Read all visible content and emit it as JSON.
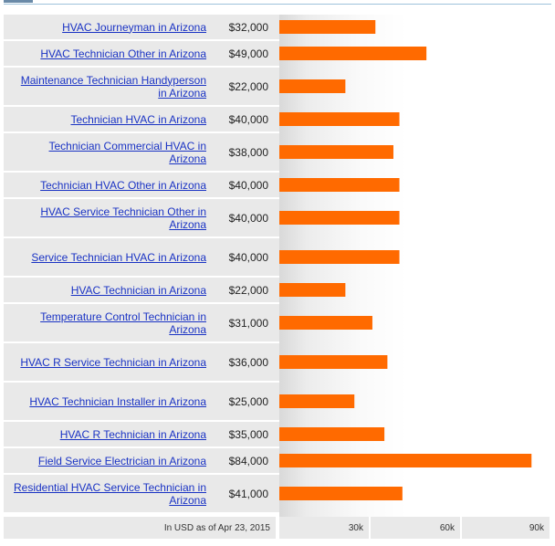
{
  "chart_data": {
    "type": "bar",
    "orientation": "horizontal",
    "categories": [
      "HVAC Journeyman in Arizona",
      "HVAC Technician Other in Arizona",
      "Maintenance Technician Handyperson in Arizona",
      "Technician HVAC in Arizona",
      "Technician Commercial HVAC in Arizona",
      "Technician HVAC Other in Arizona",
      "HVAC Service Technician Other in Arizona",
      "Service Technician HVAC in Arizona",
      "HVAC Technician in Arizona",
      "Temperature Control Technician in Arizona",
      "HVAC R Service Technician in Arizona",
      "HVAC Technician Installer in Arizona",
      "HVAC R Technician in Arizona",
      "Field Service Electrician in Arizona",
      "Residential HVAC Service Technician in Arizona"
    ],
    "values": [
      32000,
      49000,
      22000,
      40000,
      38000,
      40000,
      40000,
      40000,
      22000,
      31000,
      36000,
      25000,
      35000,
      84000,
      41000
    ],
    "value_labels": [
      "$32,000",
      "$49,000",
      "$22,000",
      "$40,000",
      "$38,000",
      "$40,000",
      "$40,000",
      "$40,000",
      "$22,000",
      "$31,000",
      "$36,000",
      "$25,000",
      "$35,000",
      "$84,000",
      "$41,000"
    ],
    "xlim": [
      0,
      90000
    ],
    "x_ticks": [
      "30k",
      "60k",
      "90k"
    ],
    "note": "In USD as of Apr 23, 2015",
    "bar_color": "#ff6a00"
  }
}
